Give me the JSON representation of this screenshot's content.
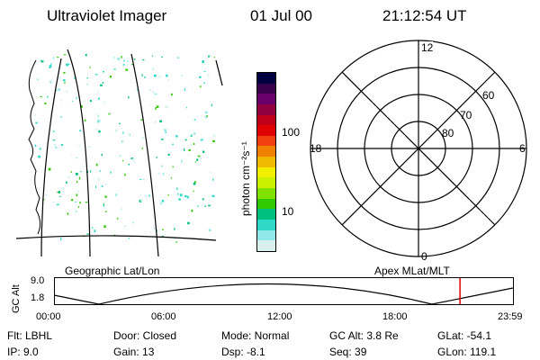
{
  "header": {
    "title": "Ultraviolet Imager",
    "date": "01 Jul 00",
    "time": "21:12:54 UT"
  },
  "colorbar": {
    "unit_label": "photon cm⁻²s⁻¹",
    "ticks": [
      "100",
      "10"
    ],
    "colors": [
      "#000040",
      "#3a0050",
      "#6a006a",
      "#900040",
      "#c00018",
      "#e00000",
      "#f04010",
      "#f08000",
      "#f0b800",
      "#f0f000",
      "#c8f000",
      "#80e000",
      "#30c800",
      "#00c080",
      "#30d8c8",
      "#90e8e8",
      "#d8f0f0"
    ]
  },
  "polar": {
    "hour_labels": {
      "top": "12",
      "left": "18",
      "right": "6",
      "bottom": "0"
    },
    "lat_labels": [
      "60",
      "70",
      "80"
    ]
  },
  "labels": {
    "left_coords": "Geographic Lat/Lon",
    "right_coords": "Apex MLat/MLT"
  },
  "timeline": {
    "ylabel": "GC Alt",
    "ymax": "9.0",
    "ymin": "1.8",
    "ticks": [
      "00:00",
      "06:00",
      "12:00",
      "18:00",
      "23:59"
    ],
    "marker_time": "21:12:54"
  },
  "info": {
    "col1": [
      "Flt:  LBHL",
      "IP:  9.0"
    ],
    "col2": [
      "Door: Closed",
      "Gain: 13"
    ],
    "col3": [
      "Mode: Normal",
      "Dsp:   -8.1"
    ],
    "col4": [
      "GC Alt: 3.8 Re",
      "Seq: 39"
    ],
    "col5": [
      "GLat: -54.1",
      "GLon: 119.1"
    ]
  }
}
